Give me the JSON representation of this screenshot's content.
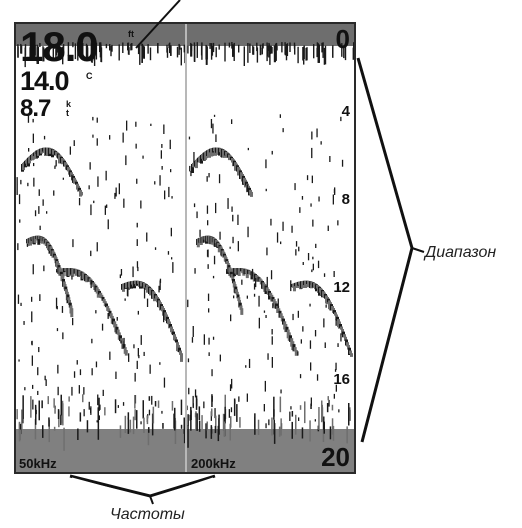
{
  "readouts": {
    "depth": "18.0",
    "depth_unit": "ft",
    "temperature": "14.0",
    "temperature_unit": "C",
    "speed": "8.7",
    "speed_unit": "kt"
  },
  "depth_scale": [
    "0",
    "4",
    "8",
    "12",
    "16",
    "20"
  ],
  "channels": [
    {
      "frequency": "50kHz"
    },
    {
      "frequency": "200kHz"
    }
  ],
  "callouts": {
    "range": "Диапазон",
    "frequencies": "Частоты"
  },
  "colors": {
    "background": "#ffffff",
    "sonar_dark": "#1a1a1a",
    "sonar_mid": "#6e6e6e",
    "bottom_gray": "#808080",
    "divider": "#b8b8b8"
  }
}
